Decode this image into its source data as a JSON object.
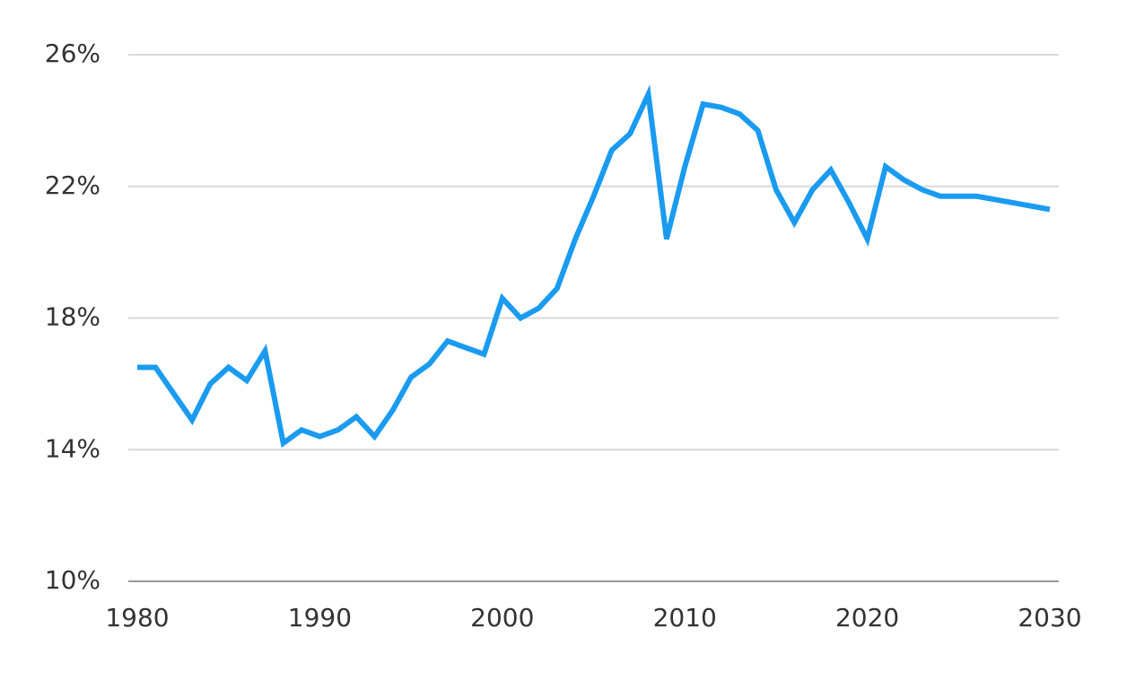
{
  "chart_data": {
    "type": "line",
    "x": [
      1980,
      1981,
      1982,
      1983,
      1984,
      1985,
      1986,
      1987,
      1988,
      1989,
      1990,
      1991,
      1992,
      1993,
      1994,
      1995,
      1996,
      1997,
      1998,
      1999,
      2000,
      2001,
      2002,
      2003,
      2004,
      2005,
      2006,
      2007,
      2008,
      2009,
      2010,
      2011,
      2012,
      2013,
      2014,
      2015,
      2016,
      2017,
      2018,
      2019,
      2020,
      2021,
      2022,
      2023,
      2024,
      2025,
      2026,
      2027,
      2028,
      2029,
      2030
    ],
    "values": [
      16.5,
      16.5,
      15.7,
      14.9,
      16.0,
      16.5,
      16.1,
      17.0,
      14.2,
      14.6,
      14.4,
      14.6,
      15.0,
      14.4,
      15.2,
      16.2,
      16.6,
      17.3,
      17.1,
      16.9,
      18.6,
      18.0,
      18.3,
      18.9,
      20.4,
      21.7,
      23.1,
      23.6,
      24.8,
      20.4,
      22.6,
      24.5,
      24.4,
      24.2,
      23.7,
      21.9,
      20.9,
      21.9,
      22.5,
      21.5,
      20.4,
      22.6,
      22.2,
      21.9,
      21.7,
      21.7,
      21.7,
      21.6,
      21.5,
      21.4,
      21.3
    ],
    "color": "#1a9bf0",
    "xlim": [
      1980,
      2030
    ],
    "xticks": [
      1980,
      1990,
      2000,
      2010,
      2020,
      2030
    ],
    "ylim": [
      10,
      26
    ],
    "yticks": [
      {
        "value": 10,
        "label": "10%"
      },
      {
        "value": 14,
        "label": "14%"
      },
      {
        "value": 18,
        "label": "18%"
      },
      {
        "value": 22,
        "label": "22%"
      },
      {
        "value": 26,
        "label": "26%"
      }
    ],
    "grid": true
  }
}
